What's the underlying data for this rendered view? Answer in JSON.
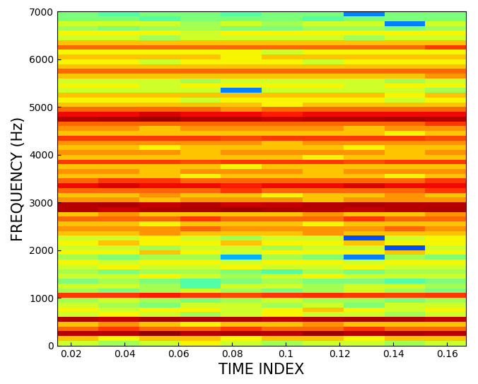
{
  "chart_data": {
    "type": "heatmap",
    "xlabel": "TIME INDEX",
    "ylabel": "FREQUENCY (Hz)",
    "color": "jet",
    "color_range": [
      0,
      10
    ],
    "xlim": [
      0.015,
      0.167
    ],
    "ylim": [
      0,
      7000
    ],
    "xticks": [
      0.02,
      0.04,
      0.06,
      0.08,
      0.1,
      0.12,
      0.14,
      0.16
    ],
    "yticks": [
      0,
      1000,
      2000,
      3000,
      4000,
      5000,
      6000,
      7000
    ],
    "x_edges": [
      0.015,
      0.0302,
      0.0454,
      0.0606,
      0.0758,
      0.091,
      0.1062,
      0.1214,
      0.1366,
      0.1518,
      0.167
    ],
    "y_edges": [
      0,
      100,
      200,
      300,
      400,
      500,
      600,
      700,
      800,
      900,
      1000,
      1100,
      1200,
      1300,
      1400,
      1500,
      1600,
      1700,
      1800,
      1900,
      2000,
      2100,
      2200,
      2300,
      2400,
      2500,
      2600,
      2700,
      2800,
      2900,
      3000,
      3100,
      3200,
      3300,
      3400,
      3500,
      3600,
      3700,
      3800,
      3900,
      4000,
      4100,
      4200,
      4300,
      4400,
      4500,
      4600,
      4700,
      4800,
      4900,
      5000,
      5100,
      5200,
      5300,
      5400,
      5500,
      5600,
      5700,
      5800,
      5900,
      6000,
      6100,
      6200,
      6300,
      6400,
      6500,
      6600,
      6700,
      6800,
      6900,
      7000
    ],
    "cells": [
      [
        6,
        5.5,
        6,
        6.5,
        6,
        5.5,
        6,
        6,
        5.5,
        6
      ],
      [
        7,
        6.5,
        7,
        7,
        6.5,
        7,
        7,
        6.5,
        7,
        7
      ],
      [
        9.5,
        9.5,
        9.8,
        9.5,
        9.6,
        9.5,
        9.7,
        9.5,
        9.6,
        9.5
      ],
      [
        8,
        8.5,
        8,
        8,
        8.5,
        8,
        8,
        8.5,
        8,
        8
      ],
      [
        7,
        7.5,
        7,
        6.5,
        7,
        7,
        7.5,
        7,
        7,
        7
      ],
      [
        9.5,
        9.4,
        9.6,
        9.5,
        9.5,
        9.4,
        9.5,
        9.6,
        9.5,
        9.4
      ],
      [
        6,
        6.5,
        6,
        5.5,
        6,
        6.5,
        6,
        6,
        5.5,
        6
      ],
      [
        6.5,
        6,
        6.5,
        6.5,
        6,
        6.5,
        7,
        6.5,
        6,
        6.5
      ],
      [
        6,
        5.5,
        5,
        6,
        6,
        5.5,
        6,
        5,
        6,
        6
      ],
      [
        5.5,
        6,
        5.5,
        5,
        5.5,
        6,
        5.5,
        5.5,
        5,
        5.5
      ],
      [
        8.5,
        8.5,
        8.8,
        8.5,
        8.3,
        8.5,
        8.6,
        8.5,
        8.4,
        8.5
      ],
      [
        5.5,
        5,
        5.5,
        6,
        5.5,
        5,
        5.5,
        6,
        5.5,
        5
      ],
      [
        6,
        6,
        5.5,
        4.5,
        6,
        6,
        5.5,
        6,
        6,
        5.5
      ],
      [
        5,
        5.5,
        5,
        4.5,
        5,
        5.5,
        5,
        5,
        4.5,
        5
      ],
      [
        6,
        6,
        6.5,
        6,
        5.5,
        6,
        6.5,
        6,
        6,
        6
      ],
      [
        5.5,
        5,
        5.5,
        5.5,
        5,
        4.5,
        5.5,
        5,
        5.5,
        5.5
      ],
      [
        6,
        6.5,
        6,
        6,
        6.5,
        6,
        6,
        6.5,
        6,
        6
      ],
      [
        6.5,
        6,
        6.5,
        6.5,
        6,
        6.5,
        6.5,
        6,
        6.5,
        6.5
      ],
      [
        5.5,
        5,
        5.5,
        5.5,
        3,
        5.5,
        5,
        2.5,
        5.5,
        5
      ],
      [
        6.5,
        6.5,
        7,
        6.5,
        6,
        6.5,
        6.5,
        6.5,
        7,
        6.5
      ],
      [
        6,
        6,
        5.5,
        6,
        6,
        5.5,
        6,
        6,
        2,
        6
      ],
      [
        6.5,
        7,
        6.5,
        6.5,
        7,
        6.5,
        6.5,
        7,
        6.5,
        6.5
      ],
      [
        6,
        6,
        6.5,
        6,
        5.5,
        6,
        6,
        2,
        6,
        6.5
      ],
      [
        7,
        7,
        7.5,
        7,
        7,
        7,
        7.5,
        7,
        7,
        7
      ],
      [
        7.5,
        7.5,
        7.5,
        8,
        7.5,
        7.5,
        7.5,
        7.5,
        8,
        7.5
      ],
      [
        7,
        7,
        6.5,
        7,
        7,
        7,
        6.5,
        7,
        7,
        7
      ],
      [
        8,
        8,
        8,
        8.5,
        8,
        8,
        8,
        8.5,
        8,
        8
      ],
      [
        7,
        7.5,
        7,
        7,
        7,
        7,
        7.5,
        7,
        7,
        7.5
      ],
      [
        9.5,
        9.3,
        9.5,
        9.6,
        9.7,
        9.6,
        9.5,
        9.4,
        9.5,
        9.6
      ],
      [
        9.5,
        9.6,
        9.4,
        9.5,
        9.3,
        9.4,
        9.5,
        9.6,
        9.5,
        9.5
      ],
      [
        7.5,
        7.5,
        7,
        7.5,
        7.5,
        7.5,
        7,
        7.5,
        7.5,
        7.5
      ],
      [
        7,
        7,
        7.5,
        7,
        7,
        6.5,
        7,
        7,
        7.5,
        7
      ],
      [
        8,
        8,
        8,
        8,
        8.5,
        8,
        8,
        8,
        8,
        8.5
      ],
      [
        9,
        9.2,
        9,
        9,
        8.8,
        9,
        9,
        9.2,
        9,
        9
      ],
      [
        8,
        8.5,
        8.5,
        8,
        8,
        8,
        8,
        8,
        8,
        8.5
      ],
      [
        7,
        7,
        7,
        6.5,
        7,
        7,
        7,
        7,
        6.5,
        7
      ],
      [
        7.5,
        7.5,
        7,
        7.5,
        7.5,
        7.5,
        7,
        7.5,
        7.5,
        7.5
      ],
      [
        7,
        7,
        7,
        7,
        6.5,
        7,
        7,
        7,
        7,
        7
      ],
      [
        8.5,
        8.5,
        8.5,
        8.3,
        8.5,
        8.5,
        8.5,
        8.3,
        8.5,
        8.5
      ],
      [
        7,
        7,
        7,
        7,
        7,
        7,
        6.5,
        7,
        7,
        7
      ],
      [
        7.5,
        7.5,
        7.5,
        7,
        7.5,
        7.5,
        7.5,
        7.5,
        7,
        7.5
      ],
      [
        7,
        7,
        6.5,
        7,
        7,
        7,
        7,
        6.5,
        7,
        7
      ],
      [
        7.5,
        7.5,
        7.5,
        7.5,
        7.5,
        7,
        7.5,
        7.5,
        7.5,
        7.5
      ],
      [
        8.5,
        8.5,
        8.5,
        8.5,
        8.3,
        8.5,
        8.5,
        8.5,
        8.5,
        8.3
      ],
      [
        7,
        7,
        7,
        7,
        7,
        7,
        7,
        7,
        6.5,
        7
      ],
      [
        7.5,
        7.5,
        7,
        7.5,
        7.5,
        7.5,
        7.5,
        7,
        7.5,
        7.5
      ],
      [
        8,
        8,
        8,
        8,
        8,
        8,
        8,
        8,
        8,
        8.5
      ],
      [
        9.5,
        9.6,
        9.7,
        9.5,
        9.5,
        9.4,
        9.5,
        9.5,
        9.6,
        9.5
      ],
      [
        9,
        9,
        9.2,
        9,
        9,
        8.8,
        9,
        9,
        9,
        9
      ],
      [
        8,
        8,
        8,
        8,
        7.5,
        8,
        8,
        8,
        8,
        8
      ],
      [
        7,
        7,
        7,
        7,
        7,
        6.5,
        7,
        7,
        7,
        7
      ],
      [
        6.5,
        6.5,
        6.5,
        6,
        6.5,
        6.5,
        6.5,
        6.5,
        6,
        6.5
      ],
      [
        7,
        7,
        7,
        7,
        7,
        7,
        7,
        7,
        6.5,
        7
      ],
      [
        6,
        6,
        6,
        6,
        2.5,
        6,
        6,
        6,
        6,
        5.5
      ],
      [
        6.5,
        6.5,
        6,
        6.5,
        6.5,
        6.5,
        6.5,
        6,
        6.5,
        6.5
      ],
      [
        6,
        6,
        6,
        5.5,
        6,
        6,
        6,
        6,
        5.5,
        6
      ],
      [
        7,
        7,
        7,
        7,
        7,
        7,
        7,
        7,
        7,
        7.5
      ],
      [
        8,
        8,
        8,
        8,
        8,
        8,
        8,
        8,
        8,
        8
      ],
      [
        7,
        7,
        7,
        7,
        7,
        7,
        7,
        7,
        7,
        7
      ],
      [
        6.5,
        6.5,
        6,
        6.5,
        6.5,
        6.5,
        6,
        6.5,
        6.5,
        6.5
      ],
      [
        7,
        7,
        7,
        7,
        6.5,
        7,
        7,
        7,
        7,
        7
      ],
      [
        6.5,
        6.5,
        6.5,
        6.5,
        6.5,
        6,
        6.5,
        6.5,
        6.5,
        6.5
      ],
      [
        8,
        8,
        8,
        8,
        8,
        8,
        8,
        8,
        8,
        8.5
      ],
      [
        7,
        7,
        7,
        7,
        7,
        7,
        7,
        7,
        7,
        7
      ],
      [
        6,
        6,
        5.5,
        6,
        6,
        6,
        6,
        5.5,
        6,
        6
      ],
      [
        6.5,
        6.5,
        6.5,
        6,
        6.5,
        6.5,
        6.5,
        6.5,
        6.5,
        6.5
      ],
      [
        5.5,
        5,
        5.5,
        5.5,
        5,
        5,
        5.5,
        5.5,
        5,
        5.5
      ],
      [
        6,
        6,
        6,
        5.5,
        6,
        5.5,
        6,
        6,
        2.5,
        6
      ],
      [
        5,
        5,
        4.5,
        5,
        5,
        5,
        4.5,
        5,
        5,
        5
      ],
      [
        5,
        4.5,
        5,
        5,
        4.5,
        5,
        5,
        2.5,
        5,
        5
      ]
    ]
  }
}
